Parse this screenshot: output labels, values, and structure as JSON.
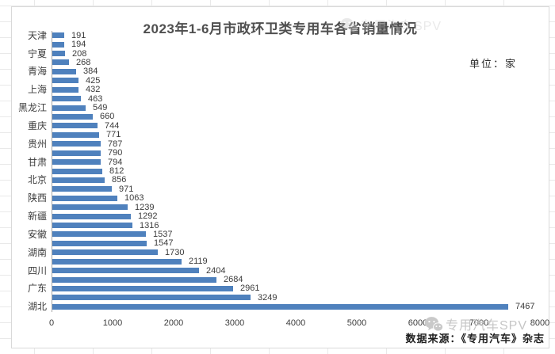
{
  "chart_data": {
    "type": "bar",
    "orientation": "horizontal",
    "title": "2023年1-6月市政环卫类专用车各省销量情况",
    "unit_label": "单位：家",
    "source_label": "数据来源：《专用汽车》杂志",
    "watermark_text": "专用汽车SPV",
    "xlabel": "",
    "ylabel": "",
    "xlim": [
      0,
      8000
    ],
    "x_ticks": [
      "0",
      "1000",
      "2000",
      "3000",
      "4000",
      "5000",
      "6000",
      "7000",
      "8000"
    ],
    "grid": false,
    "legend": false,
    "bar_color": "#4F81BD",
    "bars": [
      {
        "label": "天津",
        "value": 191
      },
      {
        "label": "",
        "value": 194
      },
      {
        "label": "宁夏",
        "value": 208
      },
      {
        "label": "",
        "value": 268
      },
      {
        "label": "青海",
        "value": 384
      },
      {
        "label": "",
        "value": 425
      },
      {
        "label": "上海",
        "value": 432
      },
      {
        "label": "",
        "value": 463
      },
      {
        "label": "黑龙江",
        "value": 549
      },
      {
        "label": "",
        "value": 660
      },
      {
        "label": "重庆",
        "value": 744
      },
      {
        "label": "",
        "value": 771
      },
      {
        "label": "贵州",
        "value": 787
      },
      {
        "label": "",
        "value": 790
      },
      {
        "label": "甘肃",
        "value": 794
      },
      {
        "label": "",
        "value": 812
      },
      {
        "label": "北京",
        "value": 856
      },
      {
        "label": "",
        "value": 971
      },
      {
        "label": "陕西",
        "value": 1063
      },
      {
        "label": "",
        "value": 1239
      },
      {
        "label": "新疆",
        "value": 1292
      },
      {
        "label": "",
        "value": 1316
      },
      {
        "label": "安徽",
        "value": 1537
      },
      {
        "label": "",
        "value": 1547
      },
      {
        "label": "湖南",
        "value": 1730
      },
      {
        "label": "",
        "value": 2119
      },
      {
        "label": "四川",
        "value": 2404
      },
      {
        "label": "",
        "value": 2684
      },
      {
        "label": "广东",
        "value": 2961
      },
      {
        "label": "",
        "value": 3249
      },
      {
        "label": "湖北",
        "value": 7467
      }
    ]
  }
}
